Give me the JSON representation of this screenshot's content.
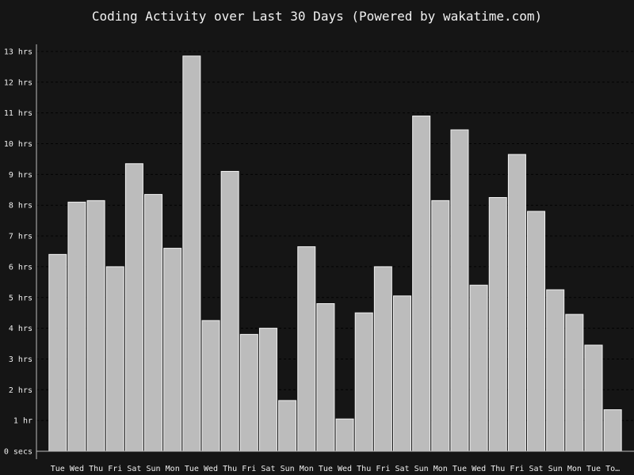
{
  "chart_data": {
    "type": "bar",
    "title": "Coding Activity over Last 30 Days (Powered by wakatime.com)",
    "xlabel": "",
    "ylabel": "",
    "ylim": [
      0,
      13.1
    ],
    "grid": true,
    "bar_color": "#bcbcbc",
    "background_color": "#151515",
    "y_ticks": [
      {
        "value": 0,
        "label": "0 secs"
      },
      {
        "value": 1,
        "label": "1 hr"
      },
      {
        "value": 2,
        "label": "2 hrs"
      },
      {
        "value": 3,
        "label": "3 hrs"
      },
      {
        "value": 4,
        "label": "4 hrs"
      },
      {
        "value": 5,
        "label": "5 hrs"
      },
      {
        "value": 6,
        "label": "6 hrs"
      },
      {
        "value": 7,
        "label": "7 hrs"
      },
      {
        "value": 8,
        "label": "8 hrs"
      },
      {
        "value": 9,
        "label": "9 hrs"
      },
      {
        "value": 10,
        "label": "10 hrs"
      },
      {
        "value": 11,
        "label": "11 hrs"
      },
      {
        "value": 12,
        "label": "12 hrs"
      },
      {
        "value": 13,
        "label": "13 hrs"
      }
    ],
    "categories": [
      "Tue",
      "Wed",
      "Thu",
      "Fri",
      "Sat",
      "Sun",
      "Mon",
      "Tue",
      "Wed",
      "Thu",
      "Fri",
      "Sat",
      "Sun",
      "Mon",
      "Tue",
      "Wed",
      "Thu",
      "Fri",
      "Sat",
      "Sun",
      "Mon",
      "Tue",
      "Wed",
      "Thu",
      "Fri",
      "Sat",
      "Sun",
      "Mon",
      "Tue",
      "To…"
    ],
    "values": [
      6.4,
      8.1,
      8.15,
      6.0,
      9.35,
      8.35,
      6.6,
      12.85,
      4.25,
      9.1,
      3.8,
      4.0,
      1.65,
      6.65,
      4.8,
      1.05,
      4.5,
      6.0,
      5.05,
      10.9,
      8.15,
      10.45,
      5.4,
      8.25,
      9.65,
      7.8,
      5.25,
      4.45,
      3.45,
      1.35
    ]
  }
}
